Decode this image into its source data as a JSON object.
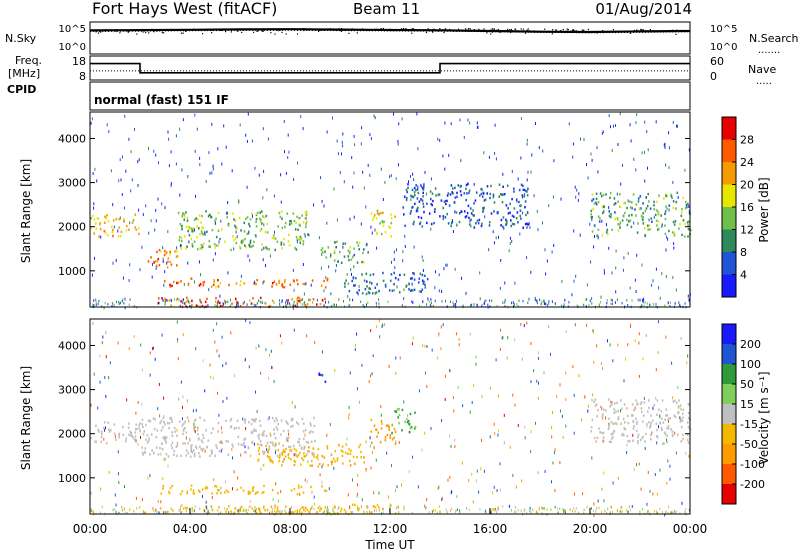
{
  "header": {
    "title": "Fort Hays West (fitACF)",
    "beam": "Beam 11",
    "date": "01/Aug/2014"
  },
  "labels": {
    "nsky": "N.Sky",
    "nsearch": "N.Search",
    "freq": "Freq.",
    "freq_unit": "[MHz]",
    "nave": "Nave",
    "cpid": "CPID",
    "cpid_value": "normal (fast) 151 IF",
    "yaxis": "Slant Range [km]",
    "xaxis": "Time UT"
  },
  "chart_data": [
    {
      "type": "line",
      "name": "noise-panel",
      "ylabel_left": "N.Sky",
      "ylabel_right": "N.Search",
      "yticks_left": [
        "10^5",
        "10^0"
      ],
      "yticks_right": [
        "10^5",
        "10^0"
      ],
      "x": [
        0,
        2,
        4,
        6,
        8,
        10,
        12,
        14,
        16,
        18,
        20,
        22,
        24
      ],
      "series": [
        {
          "name": "N.Sky",
          "values": [
            14000,
            16000,
            19000,
            22000,
            24000,
            20000,
            17000,
            15000,
            11000,
            8000,
            7000,
            9000,
            11000
          ]
        },
        {
          "name": "N.Search",
          "values": [
            9000,
            10000,
            12000,
            14000,
            15000,
            13000,
            11000,
            10000,
            8000,
            6000,
            5000,
            6000,
            8000
          ]
        }
      ]
    },
    {
      "type": "line",
      "name": "freq-nave-panel",
      "yticks_left": [
        "18",
        "8"
      ],
      "yticks_right": [
        "60",
        "0"
      ],
      "ylim_freq": [
        8,
        18
      ],
      "ylim_nave": [
        0,
        60
      ],
      "x": [
        0,
        2,
        2,
        14,
        14,
        24
      ],
      "series": [
        {
          "name": "Freq",
          "values": [
            15,
            15,
            10.8,
            10.8,
            15,
            15
          ]
        },
        {
          "name": "Nave",
          "values": [
            22,
            22,
            22,
            22,
            22,
            22
          ]
        }
      ]
    },
    {
      "type": "heatmap",
      "name": "power-panel",
      "xlabel": "Time UT",
      "ylabel": "Slant Range [km]",
      "xlim": [
        0,
        24
      ],
      "ylim": [
        180,
        4600
      ],
      "yticks": [
        1000,
        2000,
        3000,
        4000
      ],
      "colorbar": {
        "label": "Power [dB]",
        "ticks": [
          "4",
          "8",
          "12",
          "16",
          "20",
          "24",
          "28"
        ],
        "colors": [
          "#1a1aff",
          "#1f55d4",
          "#2e8a5a",
          "#6fbf4a",
          "#e6e600",
          "#f59a00",
          "#ff5a00",
          "#e60000"
        ]
      },
      "features": [
        {
          "t0": 0.0,
          "t1": 2.0,
          "r0": 1800,
          "r1": 2300,
          "level": 22
        },
        {
          "t0": 2.0,
          "t1": 3.5,
          "r0": 1100,
          "r1": 1500,
          "level": 26
        },
        {
          "t0": 3.5,
          "t1": 8.8,
          "r0": 1500,
          "r1": 2400,
          "level": 16
        },
        {
          "t0": 2.7,
          "t1": 9.5,
          "r0": 650,
          "r1": 850,
          "level": 26
        },
        {
          "t0": 2.7,
          "t1": 9.5,
          "r0": 200,
          "r1": 420,
          "level": 28
        },
        {
          "t0": 9.2,
          "t1": 11.2,
          "r0": 1200,
          "r1": 1700,
          "level": 14
        },
        {
          "t0": 11.2,
          "t1": 12.2,
          "r0": 1800,
          "r1": 2400,
          "level": 20
        },
        {
          "t0": 12.5,
          "t1": 17.5,
          "r0": 2000,
          "r1": 3000,
          "level": 8
        },
        {
          "t0": 20.0,
          "t1": 24.0,
          "r0": 1800,
          "r1": 2800,
          "level": 14
        },
        {
          "t0": 10.0,
          "t1": 13.5,
          "r0": 500,
          "r1": 1000,
          "level": 10
        }
      ]
    },
    {
      "type": "heatmap",
      "name": "velocity-panel",
      "xlabel": "Time UT",
      "ylabel": "Slant Range [km]",
      "xlim": [
        0,
        24
      ],
      "ylim": [
        180,
        4600
      ],
      "yticks": [
        1000,
        2000,
        3000,
        4000
      ],
      "xticks": [
        "00:00",
        "04:00",
        "08:00",
        "12:00",
        "16:00",
        "20:00",
        "00:00"
      ],
      "colorbar": {
        "label": "Velocity [m s⁻¹]",
        "ticks": [
          "-200",
          "-100",
          "-50",
          "-15",
          "15",
          "50",
          "100",
          "200"
        ],
        "colors": [
          "#e60000",
          "#ff5a00",
          "#ff9a00",
          "#f5b800",
          "#bfbfbf",
          "#7fd05a",
          "#2e9a3a",
          "#1f55d4",
          "#1a1aff"
        ]
      },
      "features": [
        {
          "t0": 0.0,
          "t1": 2.0,
          "r0": 1800,
          "r1": 2300,
          "vel": 0
        },
        {
          "t0": 2.0,
          "t1": 9.0,
          "r0": 1500,
          "r1": 2400,
          "vel": 0
        },
        {
          "t0": 6.5,
          "t1": 11.0,
          "r0": 1300,
          "r1": 1800,
          "vel": -40
        },
        {
          "t0": 2.7,
          "t1": 9.5,
          "r0": 650,
          "r1": 850,
          "vel": -30
        },
        {
          "t0": 2.7,
          "t1": 12.0,
          "r0": 200,
          "r1": 420,
          "vel": -40
        },
        {
          "t0": 11.2,
          "t1": 12.2,
          "r0": 1800,
          "r1": 2400,
          "vel": -60
        },
        {
          "t0": 12.0,
          "t1": 13.0,
          "r0": 2000,
          "r1": 2600,
          "vel": 50
        },
        {
          "t0": 9.0,
          "t1": 9.4,
          "r0": 3100,
          "r1": 3400,
          "vel": 200
        },
        {
          "t0": 20.0,
          "t1": 24.0,
          "r0": 1800,
          "r1": 2800,
          "vel": 0
        }
      ]
    }
  ]
}
